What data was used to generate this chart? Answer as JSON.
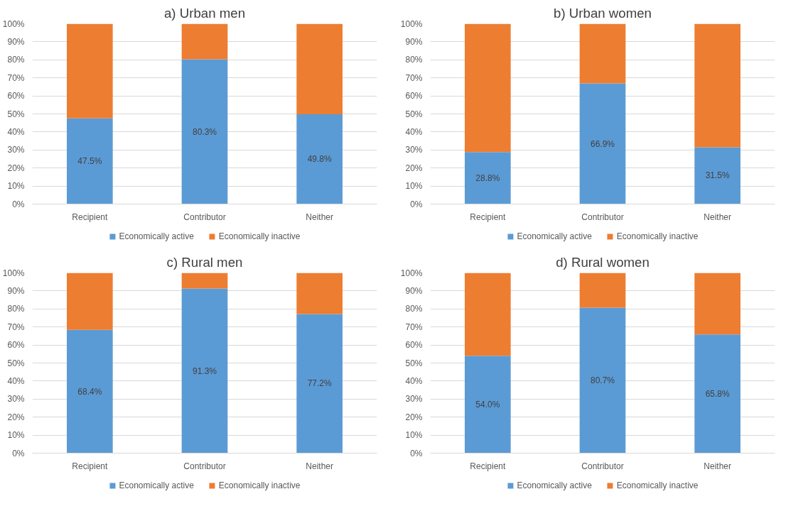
{
  "chart_data": [
    {
      "type": "bar",
      "title": "a) Urban men",
      "categories": [
        "Recipient",
        "Contributor",
        "Neither"
      ],
      "stacked": true,
      "ylim": [
        0,
        100
      ],
      "yticks": [
        {
          "value": 0,
          "label": "0%"
        },
        {
          "value": 10,
          "label": "10%"
        },
        {
          "value": 20,
          "label": "20%"
        },
        {
          "value": 30,
          "label": "30%"
        },
        {
          "value": 40,
          "label": "40%"
        },
        {
          "value": 50,
          "label": "50%"
        },
        {
          "value": 60,
          "label": "60%"
        },
        {
          "value": 70,
          "label": "70%"
        },
        {
          "value": 80,
          "label": "80%"
        },
        {
          "value": 90,
          "label": "90%"
        },
        {
          "value": 100,
          "label": "100%"
        }
      ],
      "grid": "y",
      "legend": "bottom",
      "series": [
        {
          "name": "Economically active",
          "color": "#5b9bd5",
          "values": [
            47.5,
            80.3,
            49.8
          ],
          "value_labels": [
            "47.5%",
            "80.3%",
            "49.8%"
          ]
        },
        {
          "name": "Economically inactive",
          "color": "#ed7d31",
          "values": [
            52.5,
            19.7,
            50.2
          ]
        }
      ]
    },
    {
      "type": "bar",
      "title": "b) Urban women",
      "categories": [
        "Recipient",
        "Contributor",
        "Neither"
      ],
      "stacked": true,
      "ylim": [
        0,
        100
      ],
      "yticks": [
        {
          "value": 0,
          "label": "0%"
        },
        {
          "value": 10,
          "label": "10%"
        },
        {
          "value": 20,
          "label": "20%"
        },
        {
          "value": 30,
          "label": "30%"
        },
        {
          "value": 40,
          "label": "40%"
        },
        {
          "value": 50,
          "label": "50%"
        },
        {
          "value": 60,
          "label": "60%"
        },
        {
          "value": 70,
          "label": "70%"
        },
        {
          "value": 80,
          "label": "80%"
        },
        {
          "value": 90,
          "label": "90%"
        },
        {
          "value": 100,
          "label": "100%"
        }
      ],
      "grid": "y",
      "legend": "bottom",
      "series": [
        {
          "name": "Economically active",
          "color": "#5b9bd5",
          "values": [
            28.8,
            66.9,
            31.5
          ],
          "value_labels": [
            "28.8%",
            "66.9%",
            "31.5%"
          ]
        },
        {
          "name": "Economically inactive",
          "color": "#ed7d31",
          "values": [
            71.2,
            33.1,
            68.5
          ]
        }
      ]
    },
    {
      "type": "bar",
      "title": "c) Rural men",
      "categories": [
        "Recipient",
        "Contributor",
        "Neither"
      ],
      "stacked": true,
      "ylim": [
        0,
        100
      ],
      "yticks": [
        {
          "value": 0,
          "label": "0%"
        },
        {
          "value": 10,
          "label": "10%"
        },
        {
          "value": 20,
          "label": "20%"
        },
        {
          "value": 30,
          "label": "30%"
        },
        {
          "value": 40,
          "label": "40%"
        },
        {
          "value": 50,
          "label": "50%"
        },
        {
          "value": 60,
          "label": "60%"
        },
        {
          "value": 70,
          "label": "70%"
        },
        {
          "value": 80,
          "label": "80%"
        },
        {
          "value": 90,
          "label": "90%"
        },
        {
          "value": 100,
          "label": "100%"
        }
      ],
      "grid": "y",
      "legend": "bottom",
      "series": [
        {
          "name": "Economically active",
          "color": "#5b9bd5",
          "values": [
            68.4,
            91.3,
            77.2
          ],
          "value_labels": [
            "68.4%",
            "91.3%",
            "77.2%"
          ]
        },
        {
          "name": "Economically inactive",
          "color": "#ed7d31",
          "values": [
            31.6,
            8.7,
            22.8
          ]
        }
      ]
    },
    {
      "type": "bar",
      "title": "d) Rural women",
      "categories": [
        "Recipient",
        "Contributor",
        "Neither"
      ],
      "stacked": true,
      "ylim": [
        0,
        100
      ],
      "yticks": [
        {
          "value": 0,
          "label": "0%"
        },
        {
          "value": 10,
          "label": "10%"
        },
        {
          "value": 20,
          "label": "20%"
        },
        {
          "value": 30,
          "label": "30%"
        },
        {
          "value": 40,
          "label": "40%"
        },
        {
          "value": 50,
          "label": "50%"
        },
        {
          "value": 60,
          "label": "60%"
        },
        {
          "value": 70,
          "label": "70%"
        },
        {
          "value": 80,
          "label": "80%"
        },
        {
          "value": 90,
          "label": "90%"
        },
        {
          "value": 100,
          "label": "100%"
        }
      ],
      "grid": "y",
      "legend": "bottom",
      "series": [
        {
          "name": "Economically active",
          "color": "#5b9bd5",
          "values": [
            54.0,
            80.7,
            65.8
          ],
          "value_labels": [
            "54.0%",
            "80.7%",
            "65.8%"
          ]
        },
        {
          "name": "Economically inactive",
          "color": "#ed7d31",
          "values": [
            46.0,
            19.3,
            34.2
          ]
        }
      ]
    }
  ]
}
